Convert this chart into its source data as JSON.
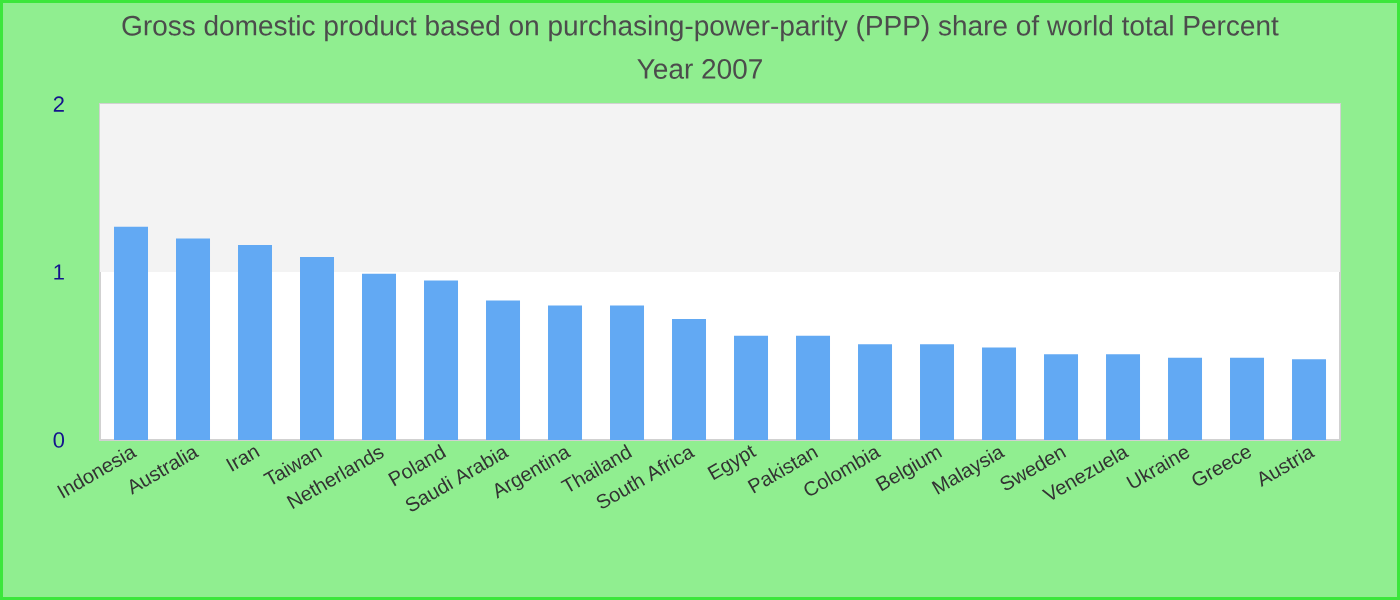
{
  "chart_data": {
    "type": "bar",
    "title": "Gross domestic product based on purchasing-power-parity (PPP) share of world total  Percent",
    "subtitle": "Year 2007",
    "categories": [
      "Indonesia",
      "Australia",
      "Iran",
      "Taiwan",
      "Netherlands",
      "Poland",
      "Saudi Arabia",
      "Argentina",
      "Thailand",
      "South Africa",
      "Egypt",
      "Pakistan",
      "Colombia",
      "Belgium",
      "Malaysia",
      "Sweden",
      "Venezuela",
      "Ukraine",
      "Greece",
      "Austria"
    ],
    "values": [
      1.27,
      1.2,
      1.16,
      1.09,
      0.99,
      0.95,
      0.83,
      0.8,
      0.8,
      0.72,
      0.62,
      0.62,
      0.57,
      0.57,
      0.55,
      0.51,
      0.51,
      0.49,
      0.49,
      0.48
    ],
    "color": "#62a9f3",
    "ylim": [
      0,
      2
    ],
    "yticks": [
      0,
      1,
      2
    ],
    "bands": [
      {
        "axis": "y",
        "from": 1,
        "to": 2,
        "color": "#f3f3f3"
      }
    ]
  }
}
